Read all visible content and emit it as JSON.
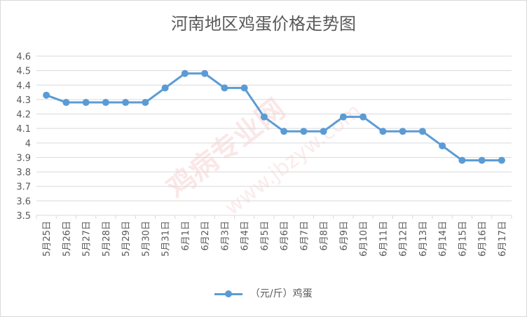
{
  "title": "河南地区鸡蛋价格走势图",
  "watermark": "鸡病专业网",
  "watermark_url": "www.jbzyw.com",
  "legend_label": "（元/斤）鸡蛋",
  "colors": {
    "series": "#5b9bd5",
    "grid": "#d9d9d9",
    "text": "#595959"
  },
  "chart_data": {
    "type": "line",
    "title": "河南地区鸡蛋价格走势图",
    "xlabel": "",
    "ylabel": "",
    "ylim": [
      3.5,
      4.6
    ],
    "y_ticks": [
      "4.6",
      "4.5",
      "4.4",
      "4.3",
      "4.2",
      "4.1",
      "4",
      "3.9",
      "3.8",
      "3.7",
      "3.6",
      "3.5"
    ],
    "grid": true,
    "legend_position": "bottom",
    "categories": [
      "5月25日",
      "5月26日",
      "5月27日",
      "5月28日",
      "5月29日",
      "5月30日",
      "5月31日",
      "6月1日",
      "6月2日",
      "6月3日",
      "6月4日",
      "6月5日",
      "6月6日",
      "6月7日",
      "6月8日",
      "6月9日",
      "6月10日",
      "6月11日",
      "6月12日",
      "6月13日",
      "6月14日",
      "6月15日",
      "6月16日",
      "6月17日"
    ],
    "series": [
      {
        "name": "（元/斤）鸡蛋",
        "values": [
          4.33,
          4.28,
          4.28,
          4.28,
          4.28,
          4.28,
          4.38,
          4.48,
          4.48,
          4.38,
          4.38,
          4.18,
          4.08,
          4.08,
          4.08,
          4.18,
          4.18,
          4.08,
          4.08,
          4.08,
          3.98,
          3.88,
          3.88,
          3.88
        ]
      }
    ]
  }
}
